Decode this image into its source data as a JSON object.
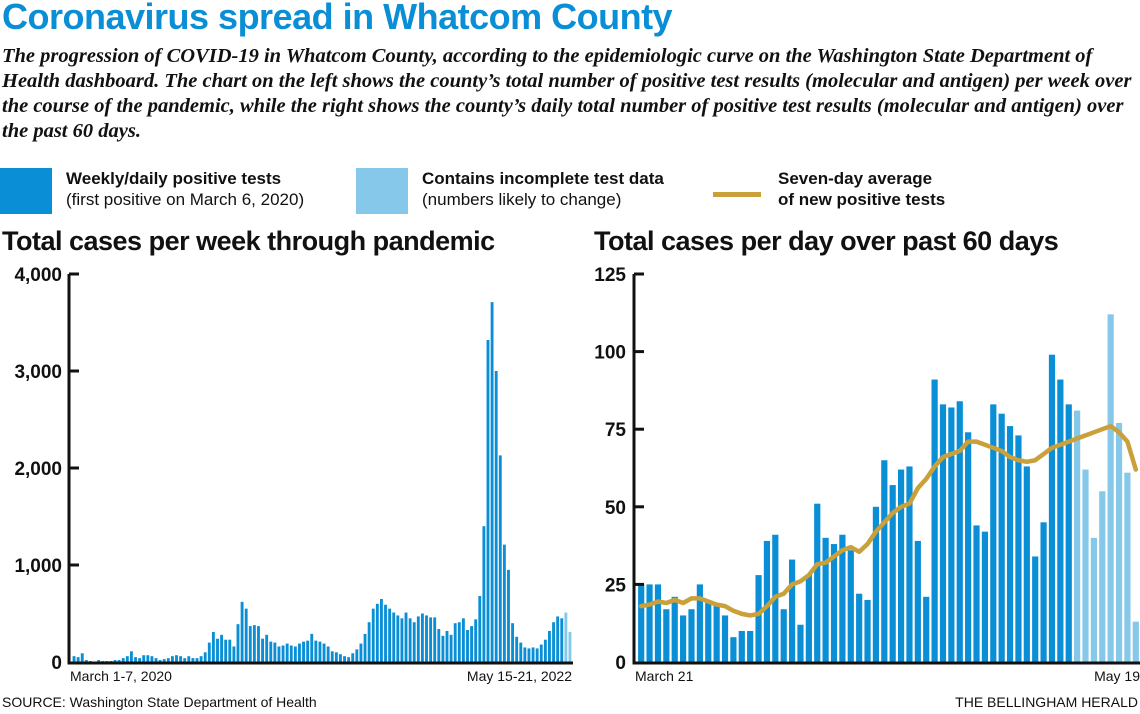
{
  "header": {
    "title": "Coronavirus spread in Whatcom County",
    "subtitle": "The progression of  COVID-19 in Whatcom County, according to the epidemiologic curve on the Washington State Department of Health dashboard. The chart on the left shows the county’s total number of positive test results (molecular and antigen) per week over the course of the pandemic, while the right shows the county’s daily total number of positive test results (molecular and antigen) over the past 60 days."
  },
  "legend": {
    "items": [
      {
        "name": "weekly-daily",
        "title": "Weekly/daily positive tests",
        "desc": "(first positive on March 6, 2020)",
        "color": "#0a8fd6",
        "kind": "swatch"
      },
      {
        "name": "incomplete",
        "title": "Contains incomplete test data",
        "desc": "(numbers likely to change)",
        "color": "#86c8ea",
        "kind": "swatch"
      },
      {
        "name": "seven-day",
        "title": "Seven-day average",
        "desc": "of new positive tests",
        "color": "#c9a03a",
        "kind": "line"
      }
    ]
  },
  "colors": {
    "complete": "#0a8fd6",
    "incomplete": "#86c8ea",
    "average": "#c9a03a",
    "axis": "#111111"
  },
  "footer": {
    "source": "SOURCE: Washington State Department of Health",
    "credit": "THE BELLINGHAM HERALD"
  },
  "chart_data": [
    {
      "type": "bar",
      "title": "Total cases per week through pandemic",
      "xlabel": "",
      "ylabel": "",
      "ylim": [
        0,
        4000
      ],
      "yticks": [
        0,
        1000,
        2000,
        3000,
        4000
      ],
      "ytick_labels": [
        "0",
        "1,000",
        "2,000",
        "3,000",
        "4,000"
      ],
      "x_first_label": "March 1-7, 2020",
      "x_last_label": "May 15-21, 2022",
      "incomplete_count": 2,
      "values": [
        60,
        50,
        90,
        20,
        10,
        5,
        20,
        10,
        10,
        10,
        20,
        20,
        40,
        60,
        110,
        50,
        40,
        70,
        70,
        60,
        40,
        20,
        30,
        40,
        60,
        70,
        60,
        40,
        60,
        40,
        40,
        60,
        100,
        200,
        310,
        240,
        280,
        230,
        230,
        160,
        390,
        620,
        550,
        370,
        380,
        370,
        240,
        280,
        210,
        200,
        160,
        170,
        190,
        170,
        160,
        190,
        210,
        220,
        290,
        220,
        210,
        190,
        160,
        110,
        100,
        80,
        60,
        50,
        90,
        130,
        190,
        290,
        410,
        550,
        600,
        650,
        590,
        550,
        510,
        480,
        450,
        510,
        450,
        410,
        470,
        500,
        480,
        460,
        460,
        340,
        270,
        320,
        280,
        400,
        410,
        450,
        330,
        370,
        440,
        680,
        1400,
        3320,
        3710,
        3000,
        2130,
        1210,
        950,
        400,
        260,
        200,
        150,
        140,
        150,
        140,
        180,
        230,
        320,
        410,
        470,
        450,
        510,
        310
      ],
      "grid": false
    },
    {
      "type": "bar+line",
      "title": "Total cases per day over past 60 days",
      "xlabel": "",
      "ylabel": "",
      "ylim": [
        0,
        125
      ],
      "yticks": [
        0,
        25,
        50,
        75,
        100,
        125
      ],
      "ytick_labels": [
        "0",
        "25",
        "50",
        "75",
        "100",
        "125"
      ],
      "x_first_label": "March 21",
      "x_last_label": "May 19",
      "incomplete_count": 8,
      "series": [
        {
          "name": "Daily positive tests",
          "values": [
            25,
            25,
            25,
            17,
            21,
            15,
            17,
            25,
            19,
            18,
            15,
            8,
            10,
            10,
            28,
            39,
            41,
            17,
            33,
            12,
            28,
            51,
            40,
            38,
            41,
            36,
            22,
            20,
            50,
            65,
            57,
            62,
            63,
            39,
            21,
            91,
            83,
            82,
            84,
            74,
            44,
            42,
            83,
            80,
            76,
            73,
            63,
            34,
            45,
            99,
            91,
            83,
            81,
            62,
            40,
            55,
            112,
            77,
            61,
            13
          ]
        },
        {
          "name": "Seven-day average",
          "values": [
            18,
            18.5,
            19.5,
            19,
            20,
            19,
            20.5,
            20.5,
            19.5,
            18.5,
            18,
            16.5,
            15.5,
            15,
            15.5,
            18,
            21,
            22,
            25,
            26,
            28,
            31.5,
            32,
            34,
            36,
            37,
            35.5,
            38,
            42,
            45,
            48,
            50,
            51,
            56,
            59,
            63,
            66,
            67,
            68,
            71,
            71,
            70,
            69,
            68,
            66,
            65,
            64.5,
            65,
            67,
            69,
            70,
            71,
            72,
            73,
            74,
            75,
            76,
            74,
            71,
            62
          ]
        }
      ],
      "grid": false
    }
  ]
}
